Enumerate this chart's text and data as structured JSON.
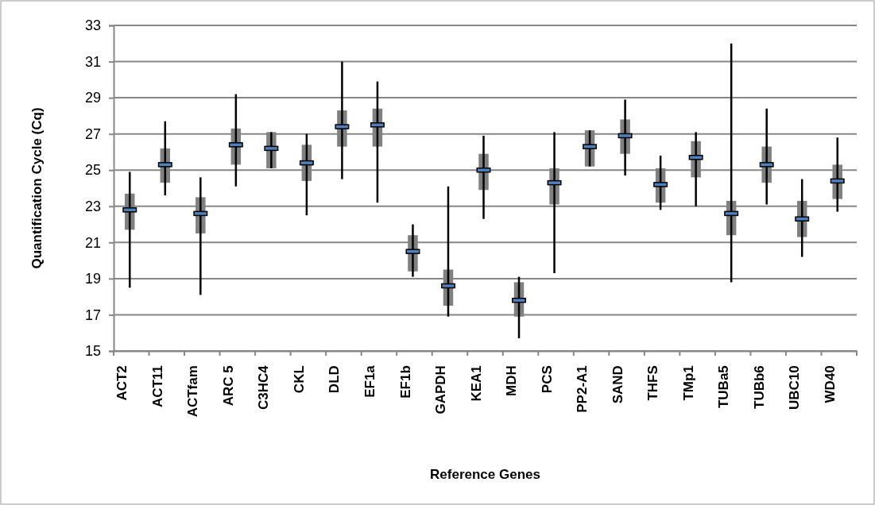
{
  "chart_data": {
    "type": "box",
    "xlabel": "Reference Genes",
    "ylabel": "Quantification Cycle (Cq)",
    "categories": [
      "ACT2",
      "ACT11",
      "ACTfam",
      "ARC 5",
      "C3HC4",
      "CKL",
      "DLD",
      "EF1a",
      "EF1b",
      "GAPDH",
      "KEA1",
      "MDH",
      "PCS",
      "PP2-A1",
      "SAND",
      "THFS",
      "TMp1",
      "TUBa5",
      "TUBb6",
      "UBC10",
      "WD40"
    ],
    "color": "#808080",
    "boxes": [
      {
        "low": 18.5,
        "q1": 21.7,
        "median": 22.8,
        "q3": 23.7,
        "high": 24.9
      },
      {
        "low": 23.6,
        "q1": 24.3,
        "median": 25.3,
        "q3": 26.2,
        "high": 27.7
      },
      {
        "low": 18.1,
        "q1": 21.5,
        "median": 22.6,
        "q3": 23.5,
        "high": 24.6
      },
      {
        "low": 24.1,
        "q1": 25.3,
        "median": 26.4,
        "q3": 27.3,
        "high": 29.2
      },
      {
        "low": 25.1,
        "q1": 25.1,
        "median": 26.2,
        "q3": 27.1,
        "high": 27.1
      },
      {
        "low": 22.5,
        "q1": 24.4,
        "median": 25.4,
        "q3": 26.4,
        "high": 27.0
      },
      {
        "low": 24.5,
        "q1": 26.3,
        "median": 27.4,
        "q3": 28.3,
        "high": 31.0
      },
      {
        "low": 23.2,
        "q1": 26.3,
        "median": 27.5,
        "q3": 28.4,
        "high": 29.9
      },
      {
        "low": 19.1,
        "q1": 19.4,
        "median": 20.5,
        "q3": 21.4,
        "high": 22.0
      },
      {
        "low": 16.9,
        "q1": 17.5,
        "median": 18.6,
        "q3": 19.5,
        "high": 24.1
      },
      {
        "low": 22.3,
        "q1": 23.9,
        "median": 25.0,
        "q3": 25.9,
        "high": 26.9
      },
      {
        "low": 15.7,
        "q1": 16.9,
        "median": 17.8,
        "q3": 18.8,
        "high": 19.1
      },
      {
        "low": 19.3,
        "q1": 23.1,
        "median": 24.3,
        "q3": 25.1,
        "high": 27.1
      },
      {
        "low": 25.2,
        "q1": 25.2,
        "median": 26.3,
        "q3": 27.2,
        "high": 27.2
      },
      {
        "low": 24.7,
        "q1": 25.9,
        "median": 26.9,
        "q3": 27.8,
        "high": 28.9
      },
      {
        "low": 22.8,
        "q1": 23.2,
        "median": 24.2,
        "q3": 25.1,
        "high": 25.8
      },
      {
        "low": 23.0,
        "q1": 24.6,
        "median": 25.7,
        "q3": 26.6,
        "high": 27.1
      },
      {
        "low": 18.8,
        "q1": 21.4,
        "median": 22.6,
        "q3": 23.3,
        "high": 32.0
      },
      {
        "low": 23.1,
        "q1": 24.3,
        "median": 25.3,
        "q3": 26.3,
        "high": 28.4
      },
      {
        "low": 20.2,
        "q1": 21.3,
        "median": 22.3,
        "q3": 23.3,
        "high": 24.5
      },
      {
        "low": 22.7,
        "q1": 23.4,
        "median": 24.4,
        "q3": 25.3,
        "high": 26.8
      }
    ],
    "ylim": [
      15,
      33
    ],
    "yticks": [
      15,
      17,
      19,
      21,
      23,
      25,
      27,
      29,
      31,
      33
    ],
    "grid": "y"
  }
}
